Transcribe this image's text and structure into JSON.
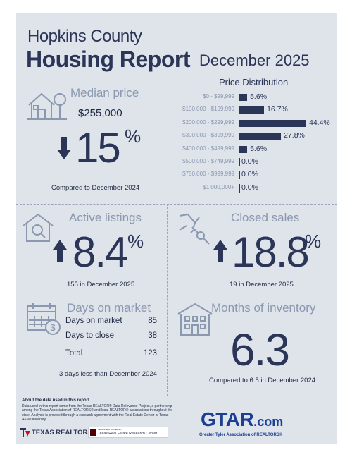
{
  "header": {
    "county": "Hopkins County",
    "report": "Housing Report",
    "month": "December 2025"
  },
  "median_price": {
    "title": "Median price",
    "price": "$255,000",
    "direction": "down",
    "change": "15",
    "pct_sign": "%",
    "compare": "Compared to December 2024",
    "icon": "house-tree-icon"
  },
  "price_distribution": {
    "title": "Price Distribution",
    "rows": [
      {
        "label": "$0 - $99,999",
        "value": 5.6,
        "text": "5.6%"
      },
      {
        "label": "$100,000 - $199,999",
        "value": 16.7,
        "text": "16.7%"
      },
      {
        "label": "$200,000 - $299,999",
        "value": 44.4,
        "text": "44.4%"
      },
      {
        "label": "$300,000 - $399,999",
        "value": 27.8,
        "text": "27.8%"
      },
      {
        "label": "$400,000 - $499,999",
        "value": 5.6,
        "text": "5.6%"
      },
      {
        "label": "$500,000 - $749,999",
        "value": 0.0,
        "text": "0.0%"
      },
      {
        "label": "$750,000 - $999,999",
        "value": 0.0,
        "text": "0.0%"
      },
      {
        "label": "$1,000,000+",
        "value": 0.0,
        "text": "0.0%"
      }
    ]
  },
  "active_listings": {
    "title": "Active listings",
    "direction": "up",
    "change": "8.4",
    "pct_sign": "%",
    "caption": "155 in December 2025",
    "icon": "house-magnifier-icon"
  },
  "closed_sales": {
    "title": "Closed sales",
    "direction": "up",
    "change": "18.8",
    "pct_sign": "%",
    "caption": "19 in December 2025",
    "icon": "hand-key-icon"
  },
  "days_on_market": {
    "title": "Days on market",
    "rows": [
      {
        "label": "Days on market",
        "value": "85"
      },
      {
        "label": "Days to close",
        "value": "38"
      }
    ],
    "total_label": "Total",
    "total_value": "123",
    "caption": "3 days less than December 2024",
    "icon": "calendar-dollar-icon"
  },
  "months_inventory": {
    "title": "Months of inventory",
    "value": "6.3",
    "caption": "Compared to 6.5 in December 2024",
    "icon": "building-icon"
  },
  "about": {
    "heading": "About the data used in this report",
    "text": "Data used in this report come from the Texas REALTOR® Data Relevance Project, a partnership among the Texas Association of REALTORS® and local REALTOR® associations throughout the state. Analysis is provided through a research agreement with the Real Estate Center at Texas A&M University."
  },
  "logos": {
    "texas_realtors": "TEXAS REALTORS",
    "tamu_small": "TEXAS A&M UNIVERSITY",
    "tamu": "Texas Real Estate Research Center",
    "gtar_main": "GTAR",
    "gtar_com": ".com",
    "gtar_tagline": "Greater Tyler Association of REALTORS®"
  },
  "colors": {
    "navy": "#2b3557",
    "steel": "#8a98b0",
    "panel": "#dfe3ea",
    "accent_red": "#c8102e"
  }
}
